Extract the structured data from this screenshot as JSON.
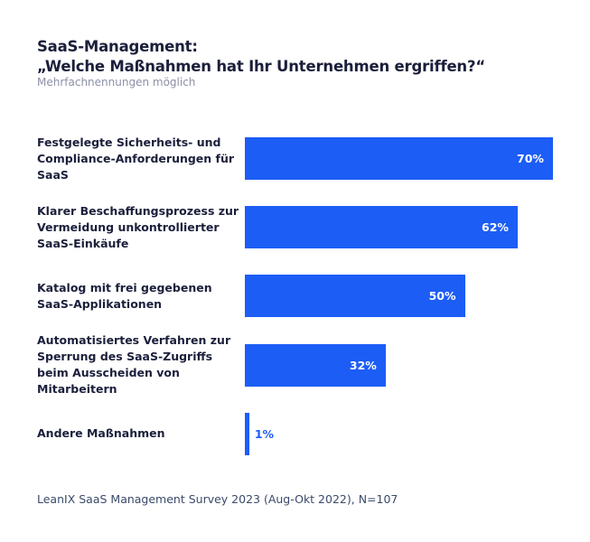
{
  "chart_data": {
    "type": "bar",
    "orientation": "horizontal",
    "title_line1": "SaaS-Management:",
    "title_line2": "„Welche Maßnahmen hat Ihr Unternehmen ergriffen?“",
    "subtitle": "Mehrfachnennungen möglich",
    "categories": [
      "Festgelegte Sicherheits- und Compliance-Anforderungen für SaaS",
      "Klarer Beschaffungsprozess zur Vermeidung unkontrollierter SaaS-Einkäufe",
      "Katalog mit frei gegebenen SaaS-Applikationen",
      "Automatisiertes Verfahren zur Sperrung des SaaS-Zugriffs beim Ausscheiden von Mitarbeitern",
      "Andere Maßnahmen"
    ],
    "values": [
      70,
      62,
      50,
      32,
      1
    ],
    "value_labels": [
      "70%",
      "62%",
      "50%",
      "32%",
      "1%"
    ],
    "unit": "%",
    "xlim": [
      0,
      100
    ],
    "grid": false,
    "bar_color": "#1c5df6",
    "source": "LeanIX SaaS Management Survey 2023 (Aug-Okt 2022), N=107"
  }
}
